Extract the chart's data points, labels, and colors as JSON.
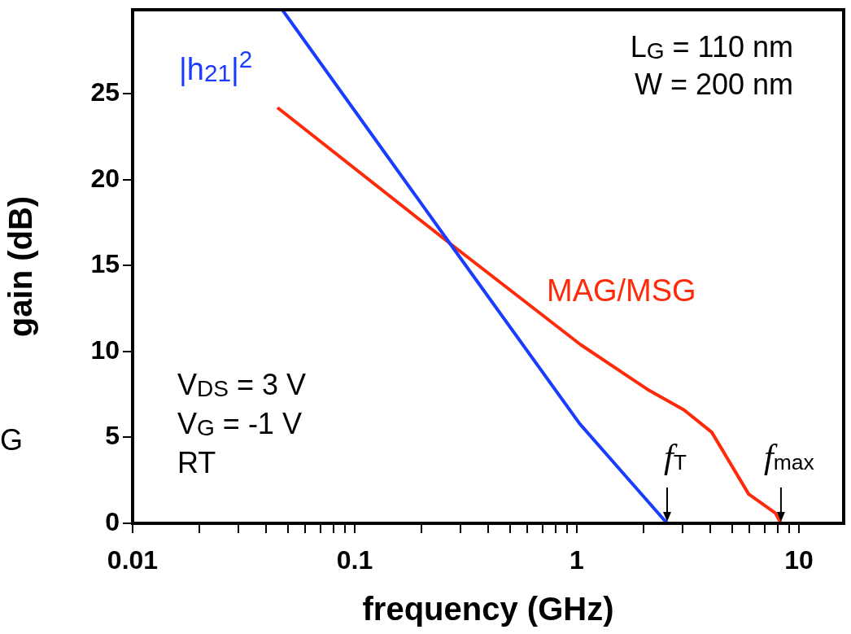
{
  "chart_data": {
    "type": "line",
    "xlabel": "frequency (GHz)",
    "ylabel": "gain (dB)",
    "log": "x",
    "xlim": [
      0.01,
      15.9
    ],
    "ylim": [
      0,
      29.9
    ],
    "xticks": [
      0.01,
      {
        "value": 0.02,
        "label": null
      },
      {
        "value": 0.03,
        "label": null
      },
      {
        "value": 0.04,
        "label": null
      },
      {
        "value": 0.05,
        "label": null
      },
      {
        "value": 0.06,
        "label": null
      },
      {
        "value": 0.07,
        "label": null
      },
      {
        "value": 0.08,
        "label": null
      },
      {
        "value": 0.09,
        "label": null
      },
      0.1,
      {
        "value": 0.2,
        "label": null
      },
      {
        "value": 0.3,
        "label": null
      },
      {
        "value": 0.4,
        "label": null
      },
      {
        "value": 0.5,
        "label": null
      },
      {
        "value": 0.6,
        "label": null
      },
      {
        "value": 0.7,
        "label": null
      },
      {
        "value": 0.8,
        "label": null
      },
      {
        "value": 0.9,
        "label": null
      },
      1,
      {
        "value": 2,
        "label": null
      },
      {
        "value": 3,
        "label": null
      },
      {
        "value": 4,
        "label": null
      },
      {
        "value": 5,
        "label": null
      },
      {
        "value": 6,
        "label": null
      },
      {
        "value": 7,
        "label": null
      },
      {
        "value": 8,
        "label": null
      },
      {
        "value": 9,
        "label": null
      },
      10
    ],
    "yticks": [
      0,
      5,
      10,
      15,
      20,
      25
    ],
    "grid": false,
    "legend": false,
    "marker": "none",
    "line_style": "solid",
    "series": [
      {
        "name": "|h$_{21}$|$^{2}$",
        "color": "#1a3cff",
        "x": [
          0.0472,
          0.268,
          1.03,
          2.55
        ],
        "values": [
          29.9,
          16.3,
          5.8,
          0
        ]
      },
      {
        "name": "MAG/MSG",
        "color": "#ff2a0a",
        "x": [
          0.0449,
          0.268,
          1.04,
          2.08,
          3.04,
          4.05,
          5.94,
          7.83,
          8.3
        ],
        "values": [
          24.2,
          16.3,
          10.4,
          7.8,
          6.6,
          5.3,
          1.7,
          0.6,
          0
        ]
      }
    ],
    "annotations": [
      "L$_{G}$ = 110 nm",
      "W = 200 nm",
      "V$_{DS}$ = 3 V",
      "V$_{G}$ = -1 V",
      "RT",
      "G",
      {
        "text": "f$_{T}$",
        "x": 2.55,
        "y": 0
      },
      {
        "text": "f$_{max}$",
        "x": 8.3,
        "y": 0
      }
    ]
  }
}
